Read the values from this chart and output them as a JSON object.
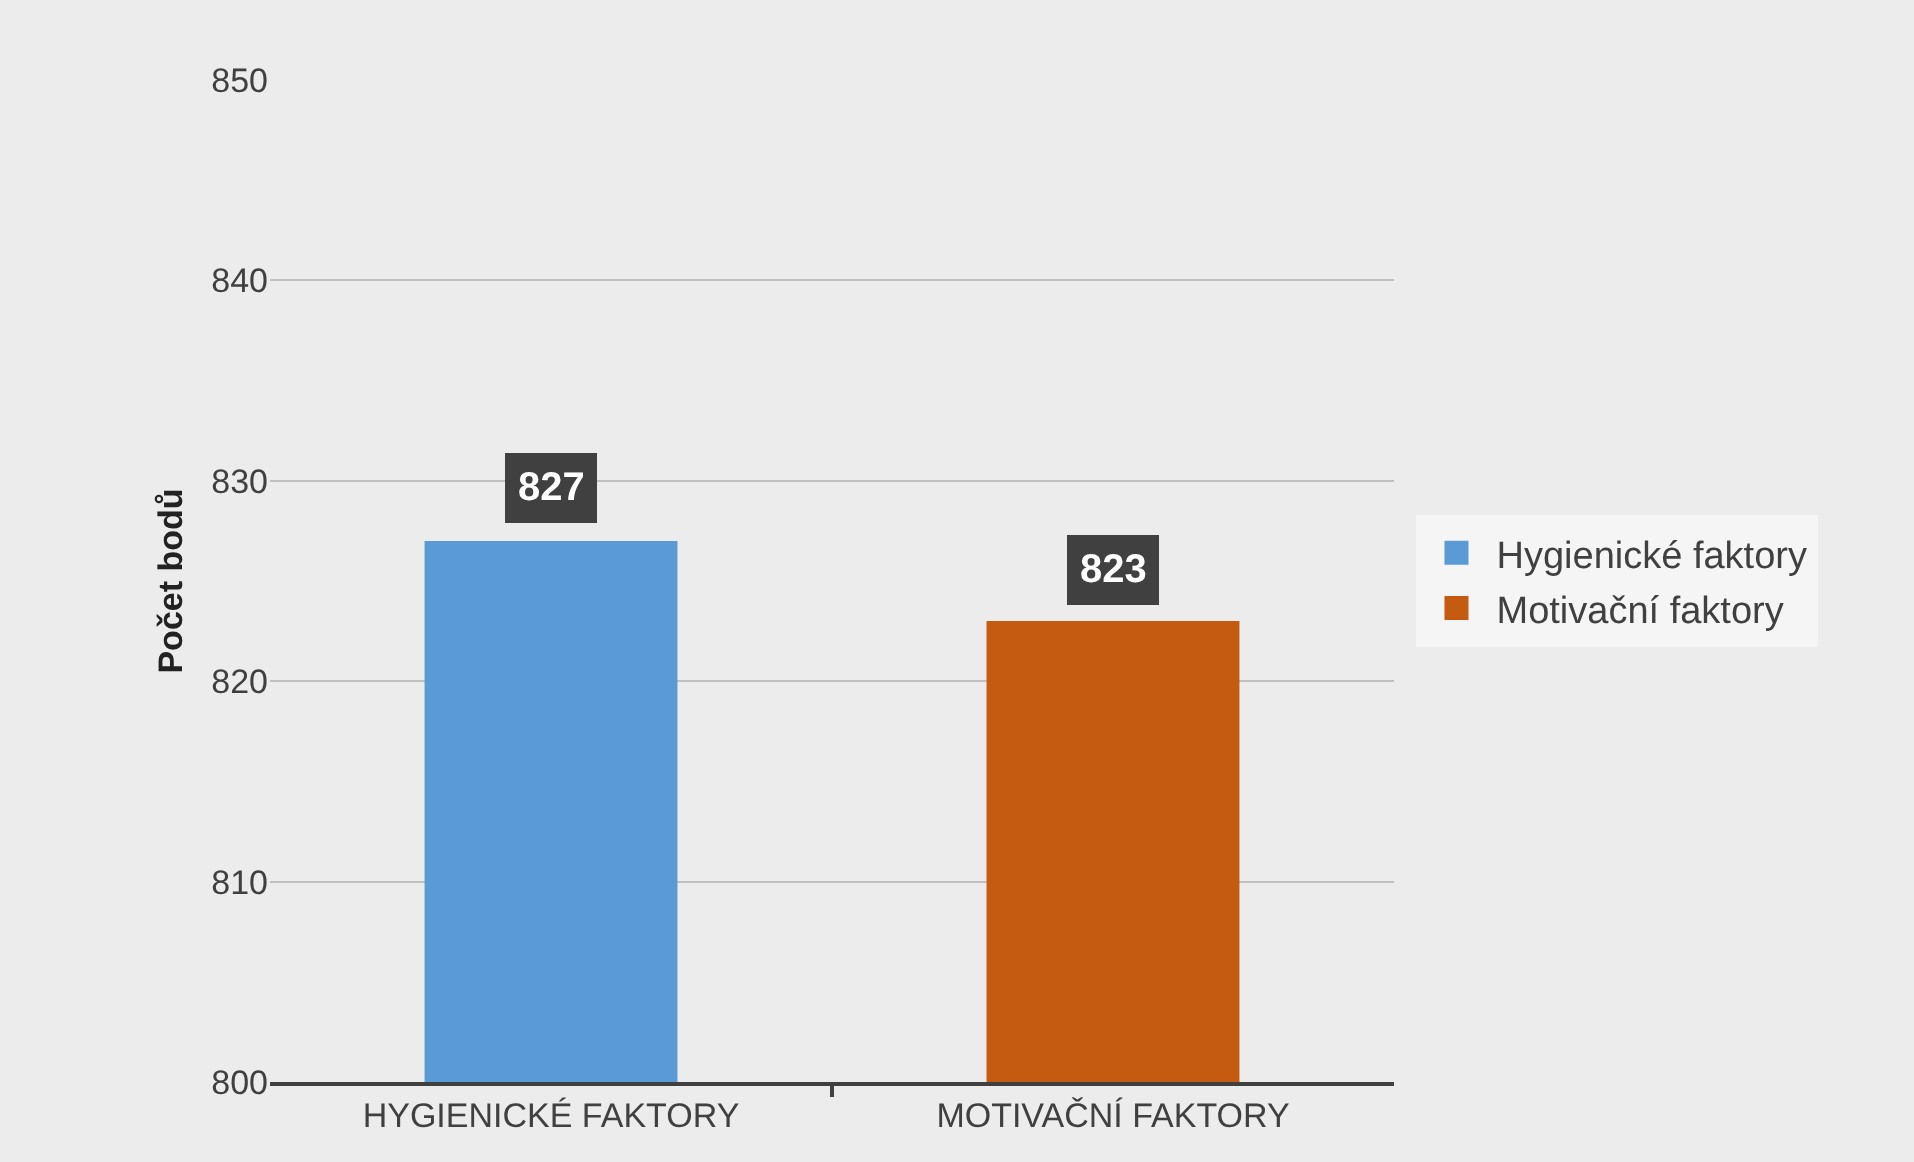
{
  "chart_data": {
    "type": "bar",
    "ylabel": "Počet bodů",
    "categories": [
      "HYGIENICKÉ FAKTORY",
      "MOTIVAČNÍ FAKTORY"
    ],
    "series": [
      {
        "name": "Hygienické faktory",
        "color": "#5b9bd5",
        "values": [
          827,
          null
        ]
      },
      {
        "name": "Motivační faktory",
        "color": "#c55a11",
        "values": [
          null,
          823
        ]
      }
    ],
    "ylim": [
      800,
      850
    ],
    "yticks": [
      800,
      810,
      820,
      830,
      840,
      850
    ],
    "grid": "y",
    "legend": "right",
    "data_labels": true
  }
}
